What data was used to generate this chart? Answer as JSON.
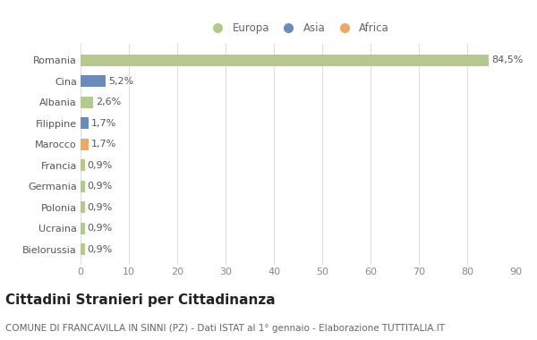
{
  "categories": [
    "Romania",
    "Cina",
    "Albania",
    "Filippine",
    "Marocco",
    "Francia",
    "Germania",
    "Polonia",
    "Ucraina",
    "Bielorussia"
  ],
  "values": [
    84.5,
    5.2,
    2.6,
    1.7,
    1.7,
    0.9,
    0.9,
    0.9,
    0.9,
    0.9
  ],
  "labels": [
    "84,5%",
    "5,2%",
    "2,6%",
    "1,7%",
    "1,7%",
    "0,9%",
    "0,9%",
    "0,9%",
    "0,9%",
    "0,9%"
  ],
  "colors": [
    "#b5c98e",
    "#6b8cba",
    "#b5c98e",
    "#6b8cba",
    "#e8a96a",
    "#b5c98e",
    "#b5c98e",
    "#b5c98e",
    "#b5c98e",
    "#b5c98e"
  ],
  "legend_labels": [
    "Europa",
    "Asia",
    "Africa"
  ],
  "legend_colors": [
    "#b5c98e",
    "#6b8cba",
    "#e8a96a"
  ],
  "title": "Cittadini Stranieri per Cittadinanza",
  "subtitle": "COMUNE DI FRANCAVILLA IN SINNI (PZ) - Dati ISTAT al 1° gennaio - Elaborazione TUTTITALIA.IT",
  "xlim": [
    0,
    90
  ],
  "xticks": [
    0,
    10,
    20,
    30,
    40,
    50,
    60,
    70,
    80,
    90
  ],
  "background_color": "#ffffff",
  "bar_height": 0.55,
  "grid_color": "#dddddd",
  "title_fontsize": 11,
  "subtitle_fontsize": 7.5,
  "tick_fontsize": 8,
  "label_fontsize": 8
}
